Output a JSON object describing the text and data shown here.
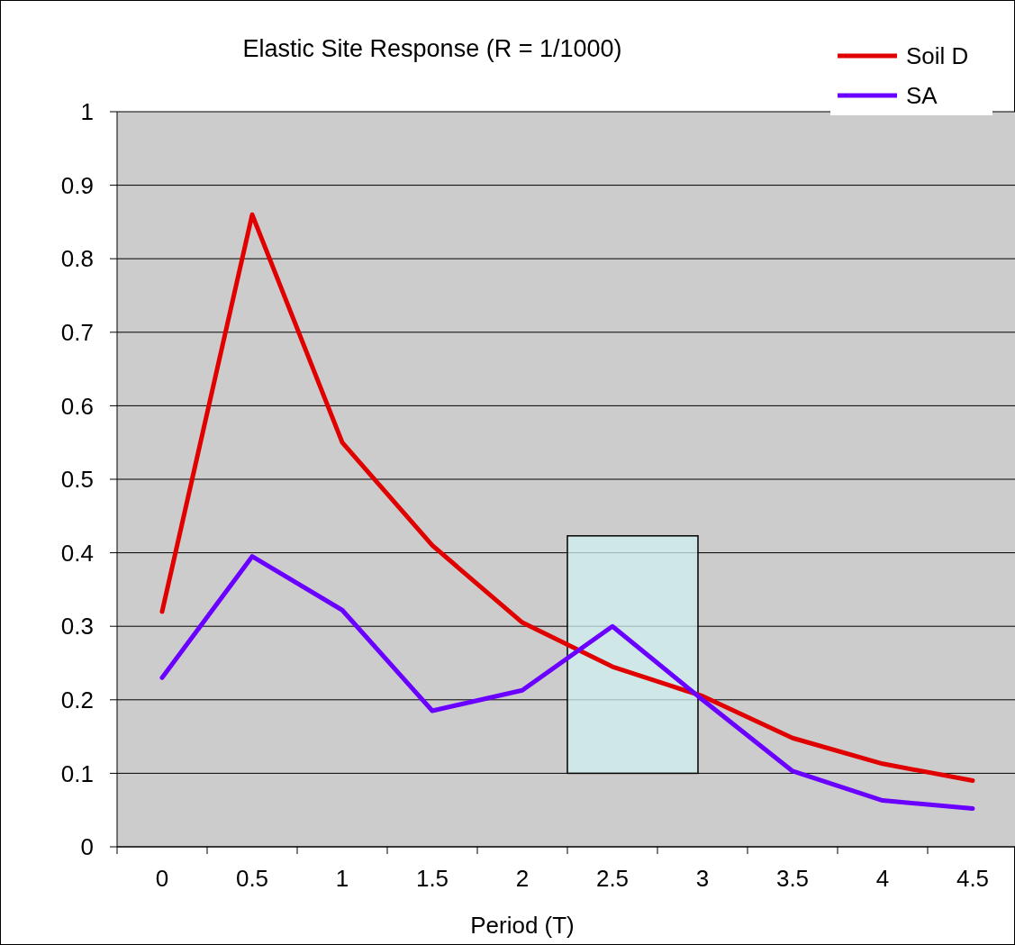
{
  "chart_data": {
    "type": "line",
    "title": "Elastic Site Response (R = 1/1000)",
    "xlabel": "Period (T)",
    "categories": [
      "0",
      "0.5",
      "1",
      "1.5",
      "2",
      "2.5",
      "3",
      "3.5",
      "4",
      "4.5"
    ],
    "series": [
      {
        "name": "Soil D",
        "color": "#e00000",
        "values": [
          0.32,
          0.86,
          0.55,
          0.41,
          0.305,
          0.245,
          0.205,
          0.148,
          0.113,
          0.09
        ]
      },
      {
        "name": "SA",
        "color": "#6a00ff",
        "values": [
          0.23,
          0.395,
          0.322,
          0.185,
          0.213,
          0.3,
          0.2,
          0.103,
          0.063,
          0.052
        ]
      }
    ],
    "ylim": [
      0,
      1
    ],
    "yticks": [
      0,
      0.1,
      0.2,
      0.3,
      0.4,
      0.5,
      0.6,
      0.7,
      0.8,
      0.9,
      1
    ],
    "grid": "y",
    "legend": "top right",
    "marker": "none",
    "line_style": "solid"
  }
}
